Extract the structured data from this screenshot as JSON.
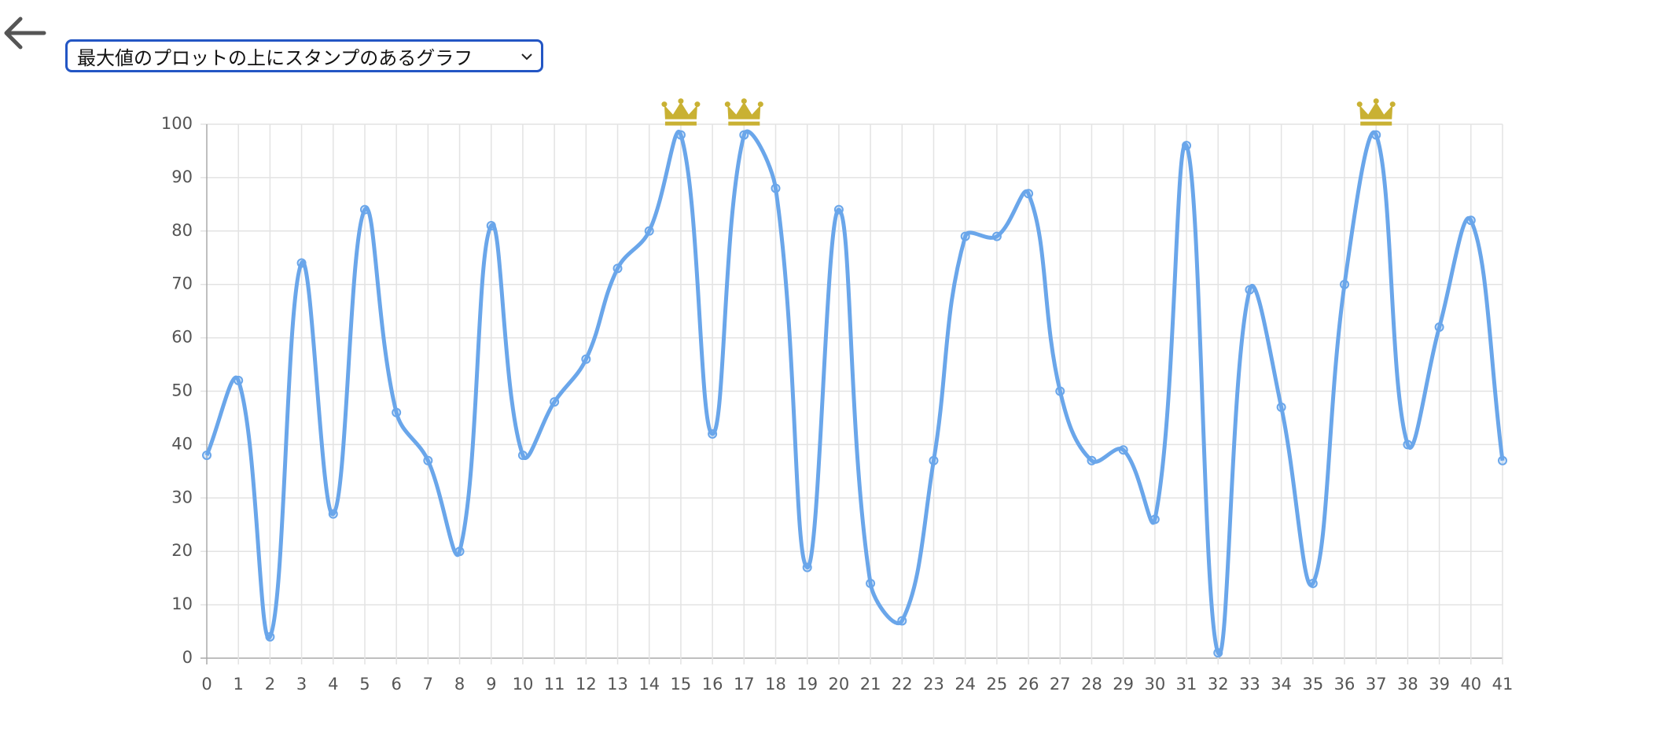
{
  "dropdown": {
    "selected": "最大値のプロットの上にスタンプのあるグラフ"
  },
  "chart_data": {
    "type": "line",
    "x": [
      0,
      1,
      2,
      3,
      4,
      5,
      6,
      7,
      8,
      9,
      10,
      11,
      12,
      13,
      14,
      15,
      16,
      17,
      18,
      19,
      20,
      21,
      22,
      23,
      24,
      25,
      26,
      27,
      28,
      29,
      30,
      31,
      32,
      33,
      34,
      35,
      36,
      37,
      38,
      39,
      40,
      41
    ],
    "values": [
      38,
      52,
      4,
      74,
      27,
      84,
      46,
      37,
      20,
      81,
      38,
      48,
      56,
      73,
      80,
      98,
      42,
      98,
      88,
      17,
      84,
      14,
      7,
      37,
      79,
      79,
      87,
      50,
      37,
      39,
      26,
      96,
      1,
      69,
      47,
      14,
      70,
      98,
      40,
      62,
      82,
      37
    ],
    "color": "#6aa6ea",
    "xlim": [
      0,
      41
    ],
    "xticks": [
      0,
      1,
      2,
      3,
      4,
      5,
      6,
      7,
      8,
      9,
      10,
      11,
      12,
      13,
      14,
      15,
      16,
      17,
      18,
      19,
      20,
      21,
      22,
      23,
      24,
      25,
      26,
      27,
      28,
      29,
      30,
      31,
      32,
      33,
      34,
      35,
      36,
      37,
      38,
      39,
      40,
      41
    ],
    "ylim": [
      0,
      100
    ],
    "yticks": [
      0,
      10,
      20,
      30,
      40,
      50,
      60,
      70,
      80,
      90,
      100
    ],
    "grid": true,
    "max_marker": "crown",
    "marker_color": "#c9b133"
  }
}
